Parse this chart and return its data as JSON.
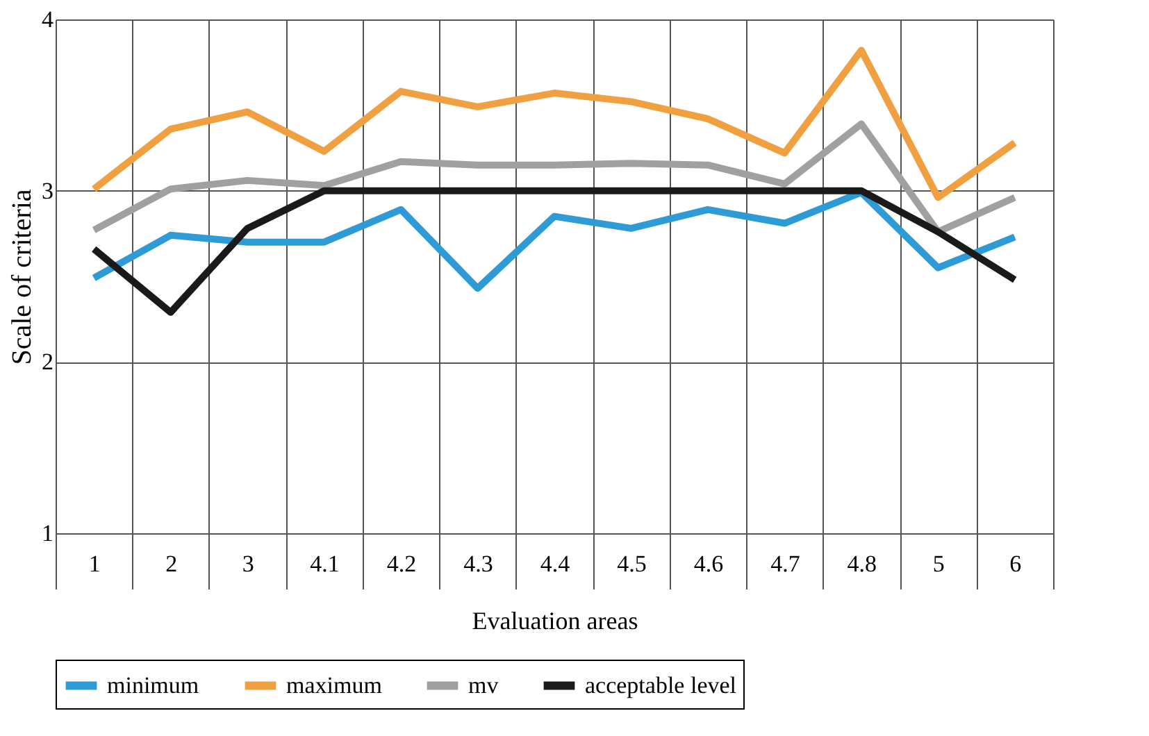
{
  "chart_data": {
    "type": "line",
    "xlabel": "Evaluation areas",
    "ylabel": "Scale of criteria",
    "categories": [
      "1",
      "2",
      "3",
      "4.1",
      "4.2",
      "4.3",
      "4.4",
      "4.5",
      "4.6",
      "4.7",
      "4.8",
      "5",
      "6"
    ],
    "ylim": [
      1,
      4
    ],
    "yticks": [
      1,
      2,
      3,
      4
    ],
    "grid": true,
    "legend": "bottom",
    "marker": "none",
    "line_style": "solid",
    "series": [
      {
        "name": "minimum",
        "color": "#2e9bd6",
        "values": [
          2.49,
          2.74,
          2.7,
          2.7,
          2.89,
          2.43,
          2.85,
          2.78,
          2.89,
          2.81,
          2.99,
          2.55,
          2.73
        ]
      },
      {
        "name": "maximum",
        "color": "#f0a040",
        "values": [
          3.01,
          3.36,
          3.46,
          3.23,
          3.58,
          3.49,
          3.57,
          3.52,
          3.42,
          3.22,
          3.82,
          2.96,
          3.28
        ]
      },
      {
        "name": "mv",
        "color": "#a0a0a0",
        "values": [
          2.77,
          3.01,
          3.06,
          3.03,
          3.17,
          3.15,
          3.15,
          3.16,
          3.15,
          3.04,
          3.39,
          2.76,
          2.96
        ]
      },
      {
        "name": "acceptable level",
        "color": "#1a1a1a",
        "values": [
          2.66,
          2.29,
          2.78,
          3.0,
          3.0,
          3.0,
          3.0,
          3.0,
          3.0,
          3.0,
          3.0,
          2.76,
          2.48
        ]
      }
    ]
  }
}
